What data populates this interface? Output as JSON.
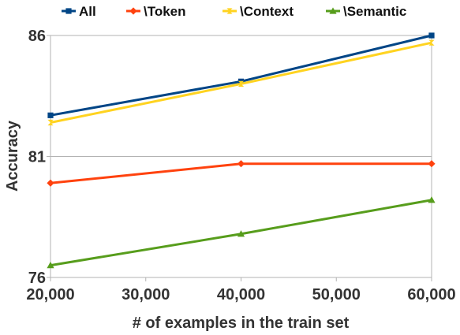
{
  "chart_data": {
    "type": "line",
    "title": "",
    "xlabel": "# of examples in the train set",
    "ylabel": "Accuracy",
    "x": [
      20000,
      40000,
      60000
    ],
    "x_ticks": [
      20000,
      30000,
      40000,
      50000,
      60000
    ],
    "x_tick_labels": [
      "20,000",
      "30,000",
      "40,000",
      "50,000",
      "60,000"
    ],
    "y_ticks": [
      76,
      81,
      86
    ],
    "y_tick_labels": [
      "76",
      "81",
      "86"
    ],
    "xlim": [
      20000,
      60000
    ],
    "ylim": [
      76,
      86
    ],
    "grid": {
      "horizontal": true,
      "vertical": false
    },
    "legend_position": "top",
    "series": [
      {
        "name": "All",
        "values": [
          82.7,
          84.1,
          86.0
        ],
        "color": "#004586",
        "marker": "square"
      },
      {
        "name": "\\Token",
        "values": [
          79.9,
          80.7,
          80.7
        ],
        "color": "#ff420e",
        "marker": "diamond"
      },
      {
        "name": "\\Context",
        "values": [
          82.4,
          84.0,
          85.7
        ],
        "color": "#ffd320",
        "marker": "bowtie"
      },
      {
        "name": "\\Semantic",
        "values": [
          76.5,
          77.8,
          79.2
        ],
        "color": "#579d1c",
        "marker": "triangle"
      }
    ]
  }
}
